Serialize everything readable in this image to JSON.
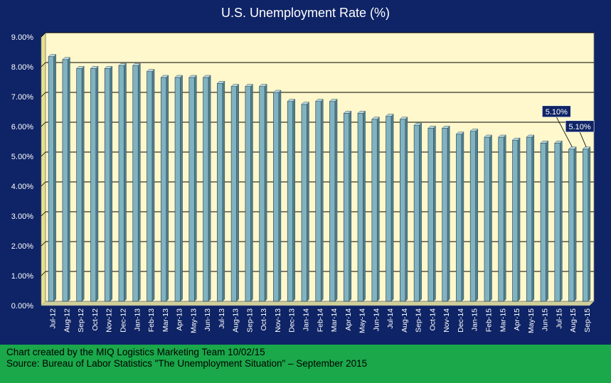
{
  "chart_data": {
    "type": "bar",
    "title": "U.S. Unemployment Rate (%)",
    "xlabel": "",
    "ylabel": "",
    "ylim": [
      0,
      9
    ],
    "y_ticks": [
      "0.00%",
      "1.00%",
      "2.00%",
      "3.00%",
      "4.00%",
      "5.00%",
      "6.00%",
      "7.00%",
      "8.00%",
      "9.00%"
    ],
    "grid": true,
    "categories": [
      "Jul-12",
      "Aug-12",
      "Sep-12",
      "Oct-12",
      "Nov-12",
      "Dec-12",
      "Jan-13",
      "Feb-13",
      "Mar-13",
      "Apr-13",
      "May-13",
      "Jun-13",
      "Jul-13",
      "Aug-13",
      "Sep-13",
      "Oct-13",
      "Nov-13",
      "Dec-13",
      "Jan-14",
      "Feb-14",
      "Mar-14",
      "Apr-14",
      "May-14",
      "Jun-14",
      "Jul-14",
      "Aug-14",
      "Sep-14",
      "Oct-14",
      "Nov-14",
      "Dec-14",
      "Jan-15",
      "Feb-15",
      "Mar-15",
      "Apr-15",
      "May-15",
      "Jun-15",
      "Jul-15",
      "Aug-15",
      "Sep-15"
    ],
    "values": [
      8.2,
      8.1,
      7.8,
      7.8,
      7.8,
      7.9,
      7.9,
      7.7,
      7.5,
      7.5,
      7.5,
      7.5,
      7.3,
      7.2,
      7.2,
      7.2,
      7.0,
      6.7,
      6.6,
      6.7,
      6.7,
      6.3,
      6.3,
      6.1,
      6.2,
      6.1,
      5.9,
      5.8,
      5.8,
      5.6,
      5.7,
      5.5,
      5.5,
      5.4,
      5.5,
      5.3,
      5.3,
      5.1,
      5.1
    ],
    "annotations": [
      {
        "category": "Aug-15",
        "text": "5.10%"
      },
      {
        "category": "Sep-15",
        "text": "5.10%"
      }
    ],
    "colors": {
      "background": "#0f2466",
      "plot_area": "#fff8cc",
      "bar_face": "#7fb3c2",
      "bar_top": "#b5dbe3",
      "bar_outline": "#3a4a55",
      "gridline": "#000000",
      "label_box": "#0f2466"
    }
  },
  "footer": {
    "line1": "Chart created by the MIQ Logistics Marketing Team 10/02/15",
    "line2": "Source: Bureau of Labor Statistics \"The Unemployment Situation\" – September 2015"
  }
}
